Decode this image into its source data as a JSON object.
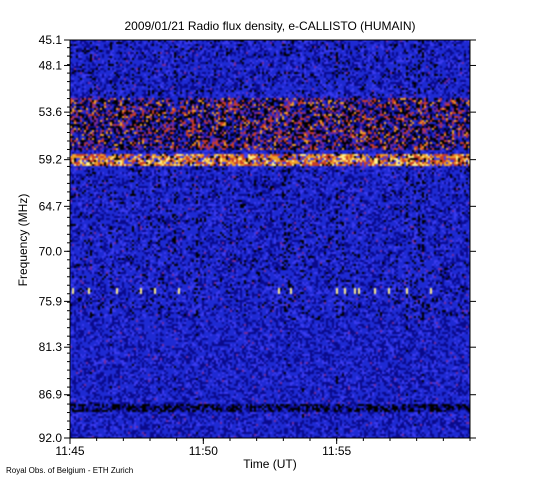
{
  "chart_data": {
    "type": "heatmap",
    "title": "2009/01/21  Radio flux density, e-CALLISTO (HUMAIN)",
    "xlabel": "Time (UT)",
    "ylabel": "Frequency (MHz)",
    "x_ticks": [
      "11:45",
      "11:50",
      "11:55"
    ],
    "x_range_minutes": [
      0,
      15
    ],
    "x_tick_minutes": [
      0,
      5,
      10
    ],
    "y_ticks": [
      "45.1",
      "48.1",
      "53.6",
      "59.2",
      "64.7",
      "70.0",
      "75.9",
      "81.3",
      "86.9",
      "92.0"
    ],
    "y_range": [
      45.1,
      92.0
    ],
    "y_inverted": true,
    "colormap": [
      "#000000",
      "#0a0a8c",
      "#1e2ad2",
      "#3b3bf0",
      "#7a2a9a",
      "#c83c28",
      "#f0a028",
      "#fff08c"
    ],
    "bands": [
      {
        "from": 52.0,
        "to": 58.0,
        "intensity": "high"
      },
      {
        "from": 58.5,
        "to": 60.0,
        "intensity": "very-high"
      },
      {
        "from": 88.0,
        "to": 89.0,
        "intensity": "dark"
      }
    ]
  },
  "credit": "Royal Obs. of Belgium - ETH Zurich"
}
